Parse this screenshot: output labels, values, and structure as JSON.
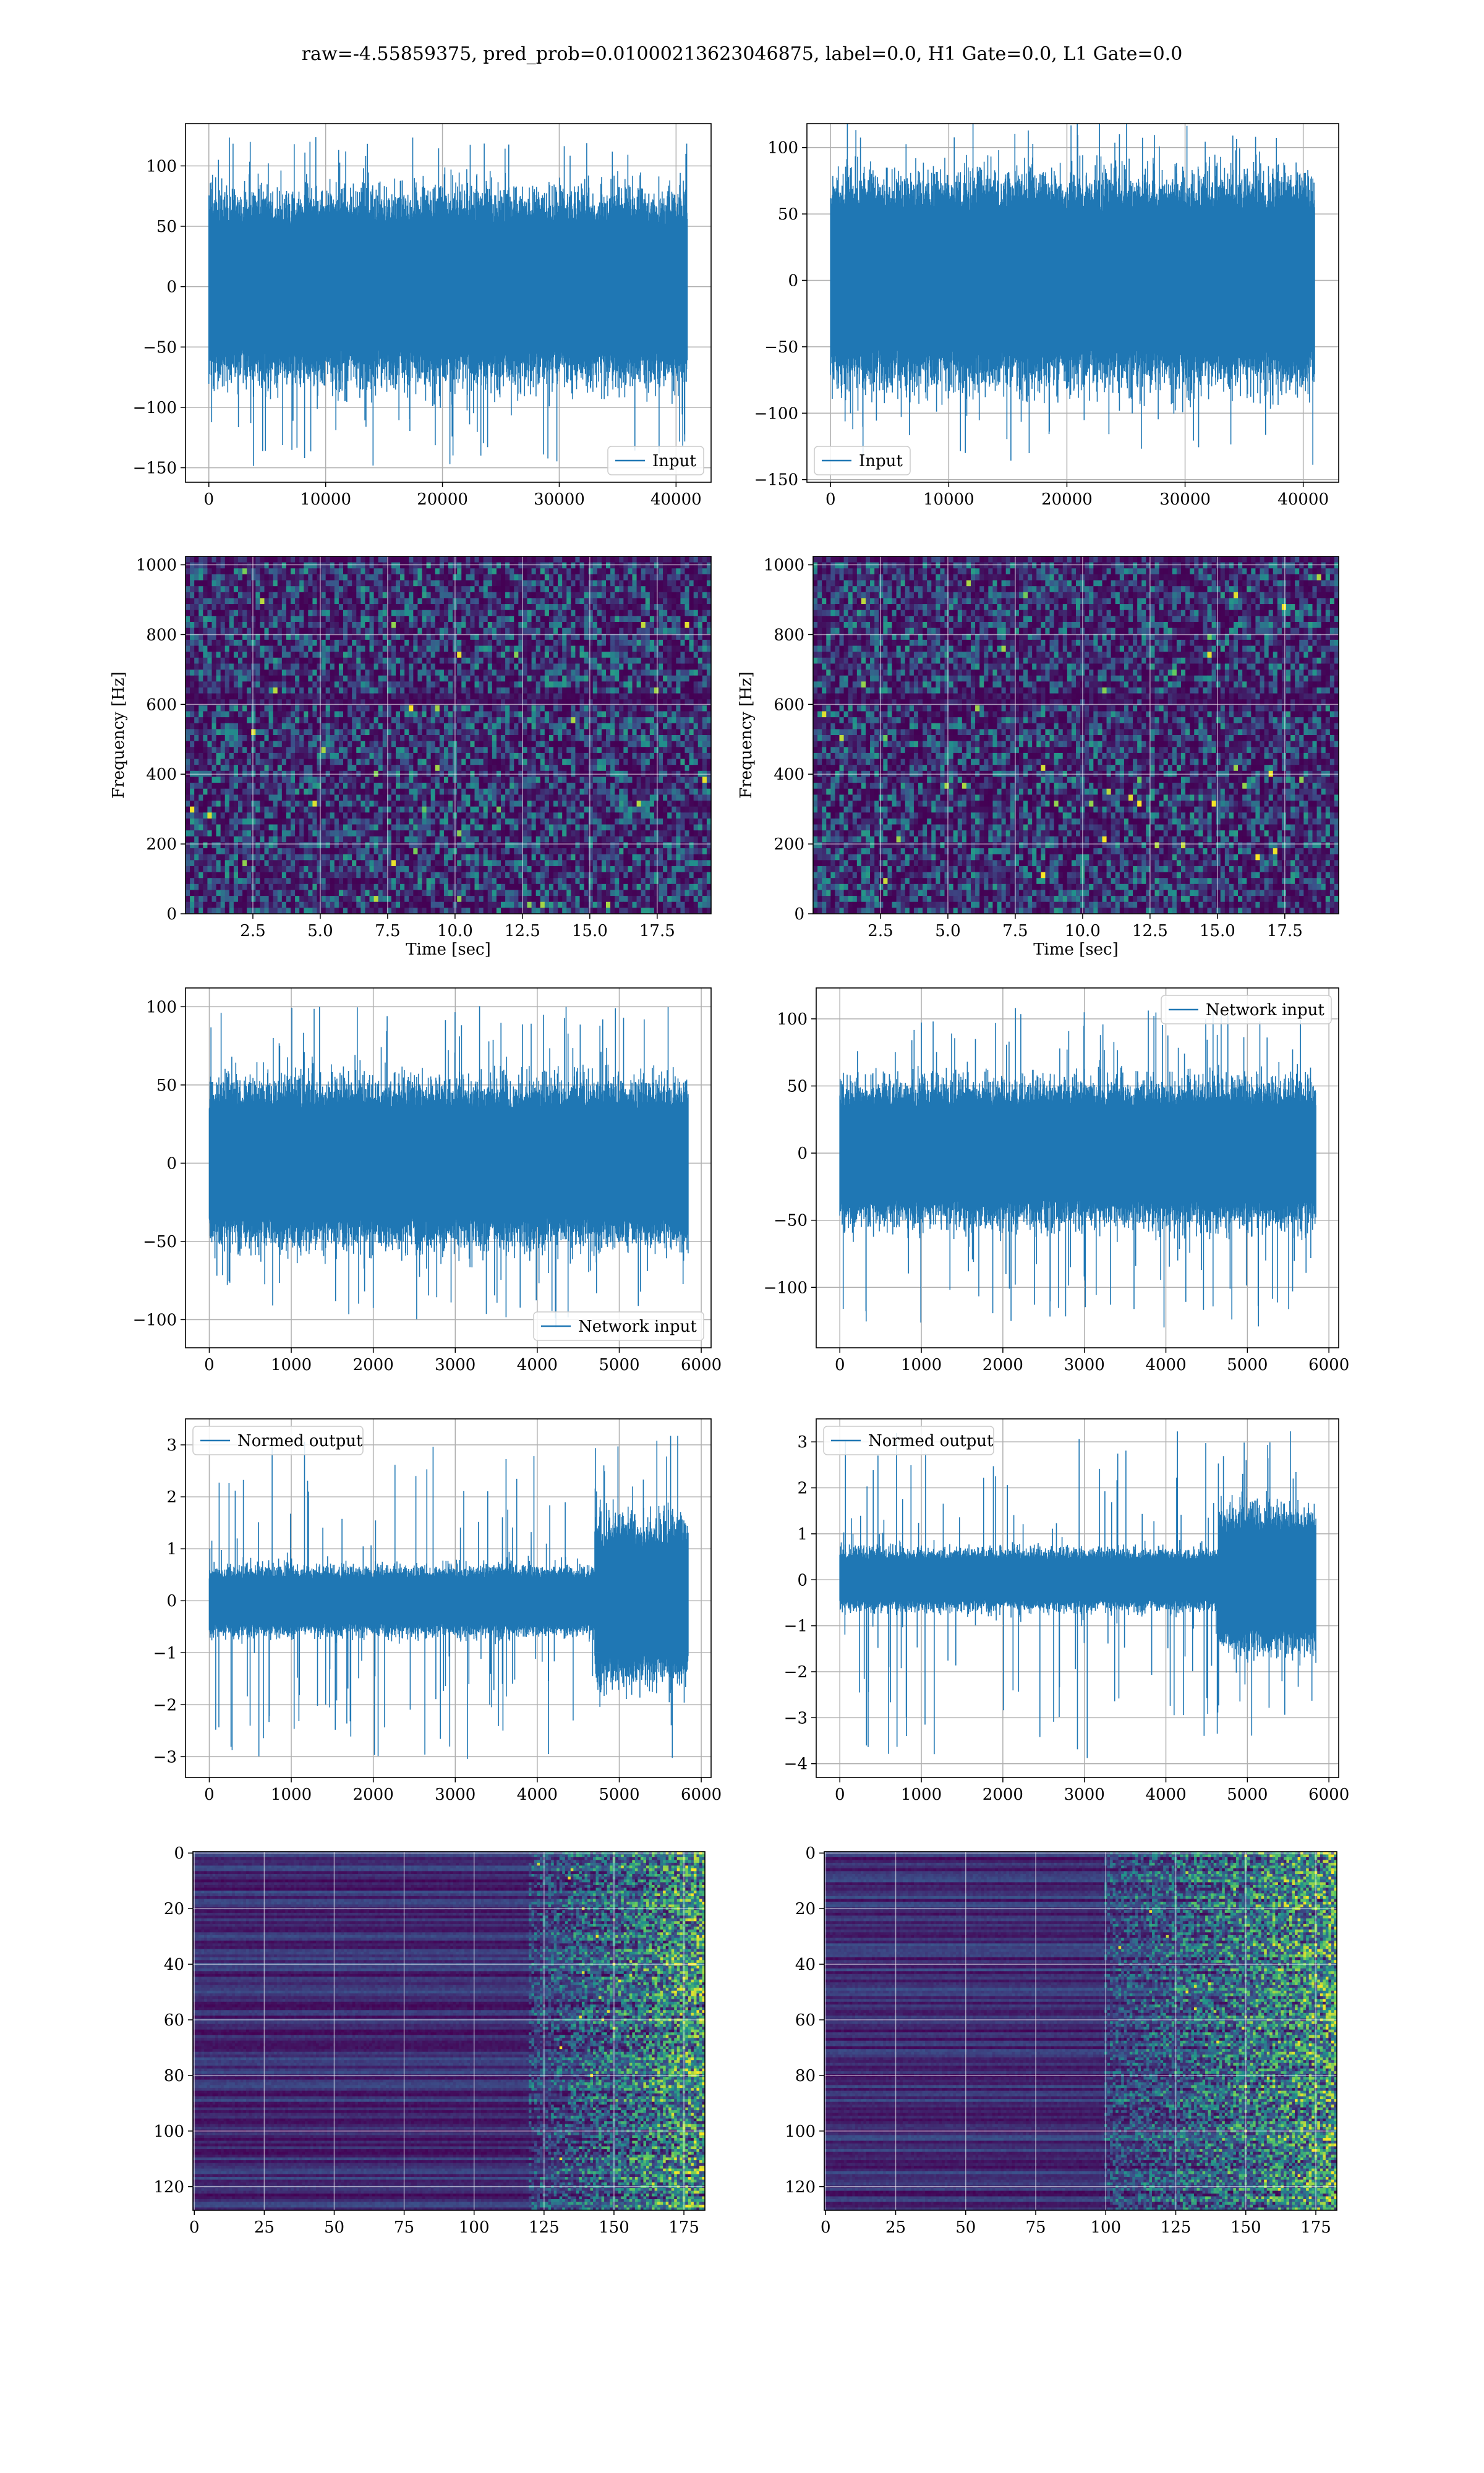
{
  "figure": {
    "title": "raw=-4.55859375, pred_prob=0.01000213623046875, label=0.0, H1 Gate=0.0, L1 Gate=0.0",
    "line_color": "#1f77b4"
  },
  "chart_data": [
    {
      "type": "line",
      "title": "",
      "xlabel": "",
      "ylabel": "",
      "xlim": [
        -2000,
        43000
      ],
      "ylim": [
        -162,
        135
      ],
      "xticks": [
        {
          "v": 0,
          "label": "0"
        },
        {
          "v": 10000,
          "label": "10000"
        },
        {
          "v": 20000,
          "label": "20000"
        },
        {
          "v": 30000,
          "label": "30000"
        },
        {
          "v": 40000,
          "label": "40000"
        }
      ],
      "yticks": [
        {
          "v": 100,
          "label": "100"
        },
        {
          "v": 50,
          "label": "50"
        },
        {
          "v": 0,
          "label": "0"
        },
        {
          "v": -50,
          "label": "−50"
        },
        {
          "v": -100,
          "label": "−100"
        },
        {
          "v": -150,
          "label": "−150"
        }
      ],
      "series": [
        {
          "name": "Input",
          "n": 40960,
          "envelope_center": 0,
          "envelope_band": 60,
          "spike_max": 124,
          "spike_min": -152
        }
      ],
      "legend": "lower right",
      "grid": true
    },
    {
      "type": "line",
      "title": "",
      "xlabel": "",
      "ylabel": "",
      "xlim": [
        -2000,
        43000
      ],
      "ylim": [
        -152,
        118
      ],
      "xticks": [
        {
          "v": 0,
          "label": "0"
        },
        {
          "v": 10000,
          "label": "10000"
        },
        {
          "v": 20000,
          "label": "20000"
        },
        {
          "v": 30000,
          "label": "30000"
        },
        {
          "v": 40000,
          "label": "40000"
        }
      ],
      "yticks": [
        {
          "v": 100,
          "label": "100"
        },
        {
          "v": 50,
          "label": "50"
        },
        {
          "v": 0,
          "label": "0"
        },
        {
          "v": -50,
          "label": "−50"
        },
        {
          "v": -100,
          "label": "−100"
        },
        {
          "v": -150,
          "label": "−150"
        }
      ],
      "series": [
        {
          "name": "Input",
          "n": 40960,
          "envelope_center": 0,
          "envelope_band": 60,
          "spike_max": 120,
          "spike_min": -140
        }
      ],
      "legend": "lower left",
      "grid": true
    },
    {
      "type": "heatmap",
      "title": "",
      "xlabel": "Time [sec]",
      "ylabel": "Frequency [Hz]",
      "xlim": [
        0,
        19.5
      ],
      "ylim": [
        0,
        1024
      ],
      "xticks": [
        {
          "v": 2.5,
          "label": "2.5"
        },
        {
          "v": 5,
          "label": "5.0"
        },
        {
          "v": 7.5,
          "label": "7.5"
        },
        {
          "v": 10,
          "label": "10.0"
        },
        {
          "v": 12.5,
          "label": "12.5"
        },
        {
          "v": 15,
          "label": "15.0"
        },
        {
          "v": 17.5,
          "label": "17.5"
        }
      ],
      "yticks": [
        {
          "v": 0,
          "label": "0"
        },
        {
          "v": 200,
          "label": "200"
        },
        {
          "v": 400,
          "label": "400"
        },
        {
          "v": 600,
          "label": "600"
        },
        {
          "v": 800,
          "label": "800"
        },
        {
          "v": 1000,
          "label": "1000"
        }
      ],
      "colormap": "viridis",
      "grid": true
    },
    {
      "type": "heatmap",
      "title": "",
      "xlabel": "Time [sec]",
      "ylabel": "Frequency [Hz]",
      "xlim": [
        0,
        19.5
      ],
      "ylim": [
        0,
        1024
      ],
      "xticks": [
        {
          "v": 2.5,
          "label": "2.5"
        },
        {
          "v": 5,
          "label": "5.0"
        },
        {
          "v": 7.5,
          "label": "7.5"
        },
        {
          "v": 10,
          "label": "10.0"
        },
        {
          "v": 12.5,
          "label": "12.5"
        },
        {
          "v": 15,
          "label": "15.0"
        },
        {
          "v": 17.5,
          "label": "17.5"
        }
      ],
      "yticks": [
        {
          "v": 0,
          "label": "0"
        },
        {
          "v": 200,
          "label": "200"
        },
        {
          "v": 400,
          "label": "400"
        },
        {
          "v": 600,
          "label": "600"
        },
        {
          "v": 800,
          "label": "800"
        },
        {
          "v": 1000,
          "label": "1000"
        }
      ],
      "colormap": "viridis",
      "grid": true
    },
    {
      "type": "line",
      "title": "",
      "xlabel": "",
      "ylabel": "",
      "xlim": [
        -290,
        6120
      ],
      "ylim": [
        -118,
        112
      ],
      "xticks": [
        {
          "v": 0,
          "label": "0"
        },
        {
          "v": 1000,
          "label": "1000"
        },
        {
          "v": 2000,
          "label": "2000"
        },
        {
          "v": 3000,
          "label": "3000"
        },
        {
          "v": 4000,
          "label": "4000"
        },
        {
          "v": 5000,
          "label": "5000"
        },
        {
          "v": 6000,
          "label": "6000"
        }
      ],
      "yticks": [
        {
          "v": 100,
          "label": "100"
        },
        {
          "v": 50,
          "label": "50"
        },
        {
          "v": 0,
          "label": "0"
        },
        {
          "v": -50,
          "label": "−50"
        },
        {
          "v": -100,
          "label": "−100"
        }
      ],
      "series": [
        {
          "name": "Network input",
          "n": 5840,
          "envelope_center": 0,
          "envelope_band": 40,
          "spike_max": 102,
          "spike_min": -106
        }
      ],
      "legend": "lower right",
      "grid": true
    },
    {
      "type": "line",
      "title": "",
      "xlabel": "",
      "ylabel": "",
      "xlim": [
        -290,
        6120
      ],
      "ylim": [
        -145,
        123
      ],
      "xticks": [
        {
          "v": 0,
          "label": "0"
        },
        {
          "v": 1000,
          "label": "1000"
        },
        {
          "v": 2000,
          "label": "2000"
        },
        {
          "v": 3000,
          "label": "3000"
        },
        {
          "v": 4000,
          "label": "4000"
        },
        {
          "v": 5000,
          "label": "5000"
        },
        {
          "v": 6000,
          "label": "6000"
        }
      ],
      "yticks": [
        {
          "v": 100,
          "label": "100"
        },
        {
          "v": 50,
          "label": "50"
        },
        {
          "v": 0,
          "label": "0"
        },
        {
          "v": -50,
          "label": "−50"
        },
        {
          "v": -100,
          "label": "−100"
        }
      ],
      "series": [
        {
          "name": "Network input",
          "n": 5840,
          "envelope_center": 0,
          "envelope_band": 40,
          "spike_max": 112,
          "spike_min": -130
        }
      ],
      "legend": "upper right",
      "grid": true
    },
    {
      "type": "line",
      "title": "",
      "xlabel": "",
      "ylabel": "",
      "xlim": [
        -290,
        6120
      ],
      "ylim": [
        -3.4,
        3.5
      ],
      "xticks": [
        {
          "v": 0,
          "label": "0"
        },
        {
          "v": 1000,
          "label": "1000"
        },
        {
          "v": 2000,
          "label": "2000"
        },
        {
          "v": 3000,
          "label": "3000"
        },
        {
          "v": 4000,
          "label": "4000"
        },
        {
          "v": 5000,
          "label": "5000"
        },
        {
          "v": 6000,
          "label": "6000"
        }
      ],
      "yticks": [
        {
          "v": 3,
          "label": "3"
        },
        {
          "v": 2,
          "label": "2"
        },
        {
          "v": 1,
          "label": "1"
        },
        {
          "v": 0,
          "label": "0"
        },
        {
          "v": -1,
          "label": "−1"
        },
        {
          "v": -2,
          "label": "−2"
        },
        {
          "v": -3,
          "label": "−3"
        }
      ],
      "series": [
        {
          "name": "Normed output",
          "n": 5840,
          "envelope_center": 0,
          "envelope_band": 0.5,
          "step_start": 4700,
          "step_band": 1.2,
          "spike_max": 3.3,
          "spike_min": -3.1
        }
      ],
      "legend": "upper left",
      "grid": true
    },
    {
      "type": "line",
      "title": "",
      "xlabel": "",
      "ylabel": "",
      "xlim": [
        -290,
        6120
      ],
      "ylim": [
        -4.3,
        3.5
      ],
      "xticks": [
        {
          "v": 0,
          "label": "0"
        },
        {
          "v": 1000,
          "label": "1000"
        },
        {
          "v": 2000,
          "label": "2000"
        },
        {
          "v": 3000,
          "label": "3000"
        },
        {
          "v": 4000,
          "label": "4000"
        },
        {
          "v": 5000,
          "label": "5000"
        },
        {
          "v": 6000,
          "label": "6000"
        }
      ],
      "yticks": [
        {
          "v": 3,
          "label": "3"
        },
        {
          "v": 2,
          "label": "2"
        },
        {
          "v": 1,
          "label": "1"
        },
        {
          "v": 0,
          "label": "0"
        },
        {
          "v": -1,
          "label": "−1"
        },
        {
          "v": -2,
          "label": "−2"
        },
        {
          "v": -3,
          "label": "−3"
        },
        {
          "v": -4,
          "label": "−4"
        }
      ],
      "series": [
        {
          "name": "Normed output",
          "n": 5840,
          "envelope_center": 0,
          "envelope_band": 0.5,
          "step_start": 4650,
          "step_band": 1.2,
          "spike_max": 3.3,
          "spike_min": -3.9
        }
      ],
      "legend": "upper left",
      "grid": true
    },
    {
      "type": "heatmap",
      "title": "",
      "xlabel": "",
      "ylabel": "",
      "xlim": [
        -0.5,
        182.5
      ],
      "ylim": [
        128.5,
        -0.5
      ],
      "xticks": [
        {
          "v": 0,
          "label": "0"
        },
        {
          "v": 25,
          "label": "25"
        },
        {
          "v": 50,
          "label": "50"
        },
        {
          "v": 75,
          "label": "75"
        },
        {
          "v": 100,
          "label": "100"
        },
        {
          "v": 125,
          "label": "125"
        },
        {
          "v": 150,
          "label": "150"
        },
        {
          "v": 175,
          "label": "175"
        }
      ],
      "yticks": [
        {
          "v": 0,
          "label": "0"
        },
        {
          "v": 20,
          "label": "20"
        },
        {
          "v": 40,
          "label": "40"
        },
        {
          "v": 60,
          "label": "60"
        },
        {
          "v": 80,
          "label": "80"
        },
        {
          "v": 100,
          "label": "100"
        },
        {
          "v": 120,
          "label": "120"
        }
      ],
      "colormap": "viridis",
      "grid": true,
      "activity_onset": 120
    },
    {
      "type": "heatmap",
      "title": "",
      "xlabel": "",
      "ylabel": "",
      "xlim": [
        -0.5,
        182.5
      ],
      "ylim": [
        128.5,
        -0.5
      ],
      "xticks": [
        {
          "v": 0,
          "label": "0"
        },
        {
          "v": 25,
          "label": "25"
        },
        {
          "v": 50,
          "label": "50"
        },
        {
          "v": 75,
          "label": "75"
        },
        {
          "v": 100,
          "label": "100"
        },
        {
          "v": 125,
          "label": "125"
        },
        {
          "v": 150,
          "label": "150"
        },
        {
          "v": 175,
          "label": "175"
        }
      ],
      "yticks": [
        {
          "v": 0,
          "label": "0"
        },
        {
          "v": 20,
          "label": "20"
        },
        {
          "v": 40,
          "label": "40"
        },
        {
          "v": 60,
          "label": "60"
        },
        {
          "v": 80,
          "label": "80"
        },
        {
          "v": 100,
          "label": "100"
        },
        {
          "v": 120,
          "label": "120"
        }
      ],
      "colormap": "viridis",
      "grid": true,
      "activity_onset": 100
    }
  ]
}
